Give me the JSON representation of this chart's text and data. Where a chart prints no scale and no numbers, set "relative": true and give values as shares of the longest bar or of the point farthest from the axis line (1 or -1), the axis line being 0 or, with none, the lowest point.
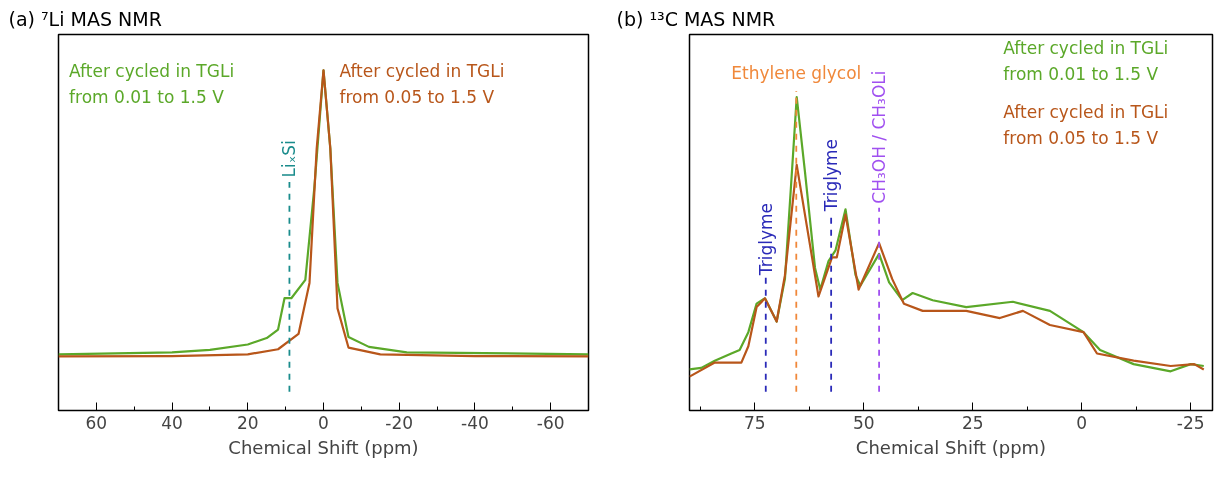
{
  "chart_data": [
    {
      "type": "line",
      "title": "(a) ⁷Li MAS NMR",
      "xlabel": "Chemical Shift (ppm)",
      "relative": true,
      "xlim": [
        70,
        -70
      ],
      "xticks": [
        60,
        40,
        20,
        0,
        -20,
        -40,
        -60,
        {
          "value": 50,
          "label": null
        },
        {
          "value": 30,
          "label": null
        },
        {
          "value": 10,
          "label": null
        },
        {
          "value": -10,
          "label": null
        },
        {
          "value": -30,
          "label": null
        },
        {
          "value": -50,
          "label": null
        }
      ],
      "grid": false,
      "line_style": "solid",
      "series": [
        {
          "name": "After cycled in TGLi\nfrom 0.01 to 1.5 V",
          "color": "#5ba829",
          "x": [
            70,
            40,
            30,
            20,
            15,
            12,
            10.3,
            8.5,
            4.8,
            2.4,
            0,
            -1.8,
            -3.7,
            -6.6,
            -12,
            -22,
            -70
          ],
          "values": [
            0.165,
            0.171,
            0.178,
            0.194,
            0.213,
            0.238,
            0.33,
            0.33,
            0.384,
            0.657,
            1.0,
            0.77,
            0.375,
            0.216,
            0.187,
            0.171,
            0.165
          ]
        },
        {
          "name": "After cycled in TGLi\nfrom 0.05 to 1.5 V",
          "color": "#b8561a",
          "x": [
            70,
            40,
            20,
            12,
            6.6,
            3.7,
            1.8,
            0,
            -1.8,
            -3.7,
            -6.6,
            -15,
            -40,
            -70
          ],
          "values": [
            0.159,
            0.16,
            0.165,
            0.18,
            0.225,
            0.375,
            0.77,
            1.0,
            0.77,
            0.3,
            0.185,
            0.165,
            0.16,
            0.159
          ]
        }
      ],
      "ref_lines": [
        {
          "axis": "x",
          "value": 9,
          "label": "LiₓSi",
          "color": "#1a8c8c",
          "line_style": "dashed"
        }
      ]
    },
    {
      "type": "line",
      "title": "(b) ¹³C MAS NMR",
      "xlabel": "Chemical Shift (ppm)",
      "relative": true,
      "xlim": [
        90,
        -30
      ],
      "xticks": [
        75,
        50,
        25,
        0,
        -25,
        {
          "value": 87.5,
          "label": null
        },
        {
          "value": 62.5,
          "label": null
        },
        {
          "value": 37.5,
          "label": null
        },
        {
          "value": 12.5,
          "label": null
        },
        {
          "value": -12.5,
          "label": null
        }
      ],
      "grid": false,
      "line_style": "solid",
      "series": [
        {
          "name": "After cycled in TGLi\nfrom 0.01 to 1.5 V",
          "color": "#5ba829",
          "x": [
            90,
            87.3,
            84.2,
            80.4,
            78.5,
            76.5,
            74.6,
            72.7,
            70,
            68.1,
            66.5,
            65.4,
            63.5,
            61.2,
            60,
            58.1,
            56.5,
            54.2,
            51.9,
            50.8,
            46.5,
            44.2,
            41.2,
            38.8,
            34.2,
            26.5,
            15.8,
            7.3,
            -0.4,
            -4.2,
            -11.9,
            -20.4,
            -25,
            -28
          ],
          "values": [
            0.131,
            0.136,
            0.159,
            0.182,
            0.193,
            0.25,
            0.341,
            0.358,
            0.284,
            0.42,
            0.761,
            1.0,
            0.761,
            0.455,
            0.386,
            0.477,
            0.511,
            0.642,
            0.432,
            0.398,
            0.5,
            0.409,
            0.352,
            0.375,
            0.352,
            0.33,
            0.347,
            0.318,
            0.25,
            0.193,
            0.148,
            0.125,
            0.148,
            0.142
          ]
        },
        {
          "name": "After cycled in TGLi\nfrom 0.05 to 1.5 V",
          "color": "#b8561a",
          "x": [
            90,
            84.2,
            78.1,
            76.5,
            74.6,
            72.7,
            70,
            68.1,
            65.4,
            63.1,
            60.4,
            57.3,
            56.2,
            54.2,
            51.2,
            46.5,
            43.5,
            40.8,
            36.5,
            26.5,
            18.8,
            13.5,
            7.3,
            -0.4,
            -3.5,
            -11.9,
            -20.4,
            -25.8,
            -28
          ],
          "values": [
            0.108,
            0.153,
            0.153,
            0.205,
            0.33,
            0.358,
            0.284,
            0.432,
            0.784,
            0.591,
            0.364,
            0.489,
            0.489,
            0.625,
            0.386,
            0.534,
            0.42,
            0.341,
            0.318,
            0.318,
            0.295,
            0.318,
            0.273,
            0.25,
            0.182,
            0.159,
            0.142,
            0.148,
            0.131
          ]
        }
      ],
      "ref_lines": [
        {
          "axis": "x",
          "value": 72.5,
          "label": "Triglyme",
          "color": "#2a2ab8",
          "line_style": "dashed"
        },
        {
          "axis": "x",
          "value": 65.5,
          "label": "Ethylene glycol",
          "color": "#f0883a",
          "line_style": "dashed"
        },
        {
          "axis": "x",
          "value": 57.5,
          "label": "Triglyme",
          "color": "#2a2ab8",
          "line_style": "dashed"
        },
        {
          "axis": "x",
          "value": 46.5,
          "label": "CH₃OH / CH₃OLi",
          "color": "#a050f0",
          "line_style": "dashed"
        }
      ]
    }
  ]
}
